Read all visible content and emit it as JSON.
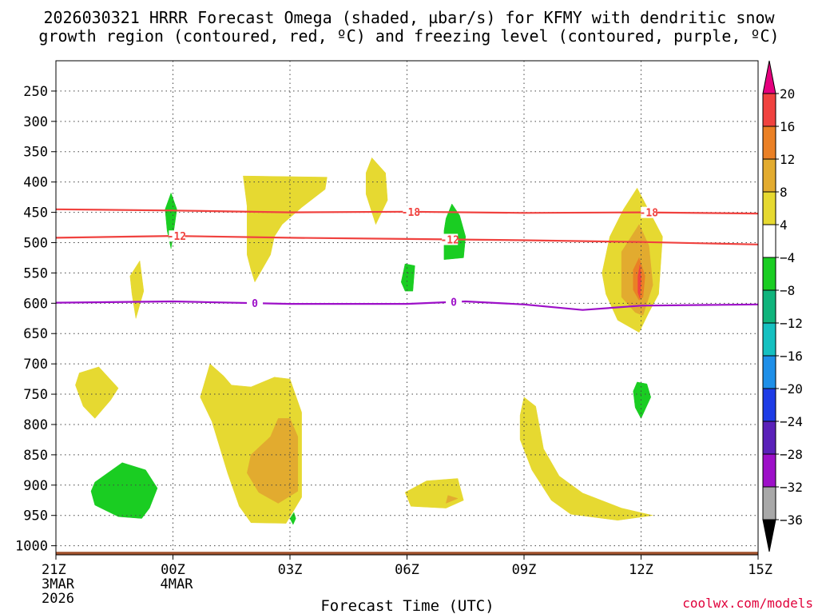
{
  "chart_data": {
    "type": "heatmap",
    "title_line1": "2026030321 HRRR Forecast Omega (shaded, µbar/s) for KFMY with dendritic snow",
    "title_line2": "growth region (contoured, red, ºC) and freezing level (contoured, purple, ºC)",
    "xlabel": "Forecast Time (UTC)",
    "credit": "coolwx.com/models",
    "x_ticks": [
      {
        "hours": 0,
        "label": "21Z",
        "date": "3MAR",
        "year": "2026"
      },
      {
        "hours": 3,
        "label": "00Z",
        "date": "4MAR",
        "year": ""
      },
      {
        "hours": 6,
        "label": "03Z",
        "date": "",
        "year": ""
      },
      {
        "hours": 9,
        "label": "06Z",
        "date": "",
        "year": ""
      },
      {
        "hours": 12,
        "label": "09Z",
        "date": "",
        "year": ""
      },
      {
        "hours": 15,
        "label": "12Z",
        "date": "",
        "year": ""
      },
      {
        "hours": 18,
        "label": "15Z",
        "date": "",
        "year": ""
      }
    ],
    "xlim": [
      0,
      18
    ],
    "y_ticks": [
      250,
      300,
      350,
      400,
      450,
      500,
      550,
      600,
      650,
      700,
      750,
      800,
      850,
      900,
      950,
      1000
    ],
    "ylim": [
      200,
      1015
    ],
    "ground_label_hpa": 1010,
    "colorbar": {
      "levels": [
        20,
        16,
        12,
        8,
        4,
        -4,
        -8,
        -12,
        -16,
        -20,
        -24,
        -28,
        -32,
        -36
      ],
      "colors": [
        "#e5007e",
        "#f0423f",
        "#ea8025",
        "#e2ab2f",
        "#e6d931",
        "#ffffff",
        "#1acd22",
        "#10b47c",
        "#15c0c0",
        "#1e8fe8",
        "#1e3ce6",
        "#5a21b9",
        "#9d10c8",
        "#a8a8a8",
        "#000000"
      ]
    },
    "contours": [
      {
        "name": "dgz-minus18",
        "label": "-18",
        "color": "#f0423f",
        "points": [
          [
            0,
            445
          ],
          [
            3,
            447
          ],
          [
            6,
            450
          ],
          [
            9,
            449
          ],
          [
            12,
            451
          ],
          [
            15,
            450
          ],
          [
            18,
            452
          ]
        ],
        "label_at": [
          9.1,
          15.2
        ]
      },
      {
        "name": "dgz-minus12",
        "label": "-12",
        "color": "#f0423f",
        "points": [
          [
            0,
            492
          ],
          [
            3,
            489
          ],
          [
            6,
            492
          ],
          [
            9,
            494
          ],
          [
            12,
            496
          ],
          [
            15,
            499
          ],
          [
            18,
            503
          ]
        ],
        "label_at": [
          3.1,
          10.1
        ]
      },
      {
        "name": "freezing-level-0",
        "label": "0",
        "color": "#9d10c8",
        "points": [
          [
            0,
            599
          ],
          [
            3,
            597
          ],
          [
            6,
            601
          ],
          [
            9,
            601
          ],
          [
            10.5,
            597
          ],
          [
            12,
            602
          ],
          [
            13.5,
            611
          ],
          [
            15,
            604
          ],
          [
            18,
            602
          ]
        ],
        "label_at": [
          5.1,
          10.2
        ]
      }
    ],
    "omega_regions": [
      {
        "value": 4,
        "points": [
          [
            0.6,
            715
          ],
          [
            1.1,
            705
          ],
          [
            1.6,
            740
          ],
          [
            1.4,
            760
          ],
          [
            1.0,
            790
          ],
          [
            0.7,
            770
          ],
          [
            0.5,
            735
          ]
        ]
      },
      {
        "value": 4,
        "points": [
          [
            1.9,
            555
          ],
          [
            2.15,
            530
          ],
          [
            2.25,
            580
          ],
          [
            2.05,
            625
          ],
          [
            1.95,
            585
          ]
        ]
      },
      {
        "value": 4,
        "points": [
          [
            3.95,
            700
          ],
          [
            3.7,
            755
          ],
          [
            4.0,
            795
          ],
          [
            4.4,
            880
          ],
          [
            4.7,
            935
          ],
          [
            5.0,
            962
          ],
          [
            5.9,
            963
          ],
          [
            6.3,
            920
          ],
          [
            6.3,
            780
          ],
          [
            6.0,
            725
          ],
          [
            5.6,
            722
          ],
          [
            5.0,
            738
          ],
          [
            4.5,
            735
          ],
          [
            4.3,
            720
          ]
        ]
      },
      {
        "value": 8,
        "points": [
          [
            5.7,
            790
          ],
          [
            5.5,
            820
          ],
          [
            5.0,
            850
          ],
          [
            4.9,
            880
          ],
          [
            5.2,
            912
          ],
          [
            5.7,
            930
          ],
          [
            6.2,
            910
          ],
          [
            6.2,
            820
          ],
          [
            6.0,
            790
          ]
        ]
      },
      {
        "value": 4,
        "points": [
          [
            4.8,
            390
          ],
          [
            6.95,
            392
          ],
          [
            6.9,
            412
          ],
          [
            6.3,
            442
          ],
          [
            5.8,
            470
          ],
          [
            5.6,
            490
          ],
          [
            5.5,
            520
          ],
          [
            5.1,
            565
          ],
          [
            5.0,
            545
          ],
          [
            4.9,
            520
          ],
          [
            4.9,
            440
          ]
        ]
      },
      {
        "value": 4,
        "points": [
          [
            8.1,
            360
          ],
          [
            8.45,
            385
          ],
          [
            8.5,
            430
          ],
          [
            8.2,
            470
          ],
          [
            7.95,
            420
          ],
          [
            7.95,
            385
          ]
        ]
      },
      {
        "value": 4,
        "points": [
          [
            9.5,
            893
          ],
          [
            10.3,
            889
          ],
          [
            10.45,
            925
          ],
          [
            10.0,
            938
          ],
          [
            9.1,
            935
          ],
          [
            8.95,
            912
          ]
        ]
      },
      {
        "value": 8,
        "points": [
          [
            10.05,
            917
          ],
          [
            10.3,
            922
          ],
          [
            10.0,
            930
          ]
        ]
      },
      {
        "value": 4,
        "points": [
          [
            12.0,
            755
          ],
          [
            12.3,
            770
          ],
          [
            12.5,
            840
          ],
          [
            12.9,
            885
          ],
          [
            13.5,
            913
          ],
          [
            14.5,
            938
          ],
          [
            15.3,
            950
          ],
          [
            14.4,
            958
          ],
          [
            13.2,
            948
          ],
          [
            12.7,
            925
          ],
          [
            12.2,
            875
          ],
          [
            11.9,
            825
          ],
          [
            11.9,
            785
          ]
        ]
      },
      {
        "value": 4,
        "points": [
          [
            14.9,
            410
          ],
          [
            15.55,
            490
          ],
          [
            15.45,
            585
          ],
          [
            15.2,
            615
          ],
          [
            14.95,
            648
          ],
          [
            14.4,
            628
          ],
          [
            14.1,
            585
          ],
          [
            14.0,
            550
          ],
          [
            14.2,
            490
          ],
          [
            14.55,
            445
          ]
        ]
      },
      {
        "value": 8,
        "points": [
          [
            14.95,
            470
          ],
          [
            15.2,
            505
          ],
          [
            15.3,
            570
          ],
          [
            15.05,
            620
          ],
          [
            14.85,
            615
          ],
          [
            14.5,
            590
          ],
          [
            14.5,
            515
          ]
        ]
      },
      {
        "value": 12,
        "points": [
          [
            14.95,
            525
          ],
          [
            15.1,
            555
          ],
          [
            15.05,
            590
          ],
          [
            14.95,
            595
          ],
          [
            14.8,
            578
          ],
          [
            14.8,
            545
          ]
        ]
      },
      {
        "value": 16,
        "points": [
          [
            14.97,
            537
          ],
          [
            15.0,
            560
          ],
          [
            14.97,
            592
          ],
          [
            14.92,
            582
          ],
          [
            14.92,
            556
          ]
        ]
      },
      {
        "value": -4,
        "points": [
          [
            1.0,
            895
          ],
          [
            1.7,
            863
          ],
          [
            2.3,
            875
          ],
          [
            2.6,
            905
          ],
          [
            2.4,
            938
          ],
          [
            2.2,
            955
          ],
          [
            1.6,
            952
          ],
          [
            1.0,
            933
          ],
          [
            0.9,
            910
          ]
        ]
      },
      {
        "value": -4,
        "points": [
          [
            2.95,
            418
          ],
          [
            3.1,
            445
          ],
          [
            3.0,
            490
          ],
          [
            2.95,
            510
          ],
          [
            2.85,
            480
          ],
          [
            2.8,
            445
          ]
        ]
      },
      {
        "value": -4,
        "points": [
          [
            6.0,
            955
          ],
          [
            6.1,
            945
          ],
          [
            6.15,
            955
          ],
          [
            6.08,
            965
          ]
        ]
      },
      {
        "value": -4,
        "points": [
          [
            8.95,
            535
          ],
          [
            9.2,
            538
          ],
          [
            9.15,
            580
          ],
          [
            8.95,
            580
          ],
          [
            8.85,
            565
          ]
        ]
      },
      {
        "value": -4,
        "points": [
          [
            10.15,
            436
          ],
          [
            10.35,
            455
          ],
          [
            10.5,
            490
          ],
          [
            10.45,
            525
          ],
          [
            9.95,
            528
          ],
          [
            9.95,
            480
          ],
          [
            10.0,
            460
          ]
        ]
      },
      {
        "value": -4,
        "points": [
          [
            14.9,
            730
          ],
          [
            15.15,
            733
          ],
          [
            15.25,
            755
          ],
          [
            15.0,
            790
          ],
          [
            14.85,
            772
          ],
          [
            14.8,
            745
          ]
        ]
      }
    ]
  }
}
